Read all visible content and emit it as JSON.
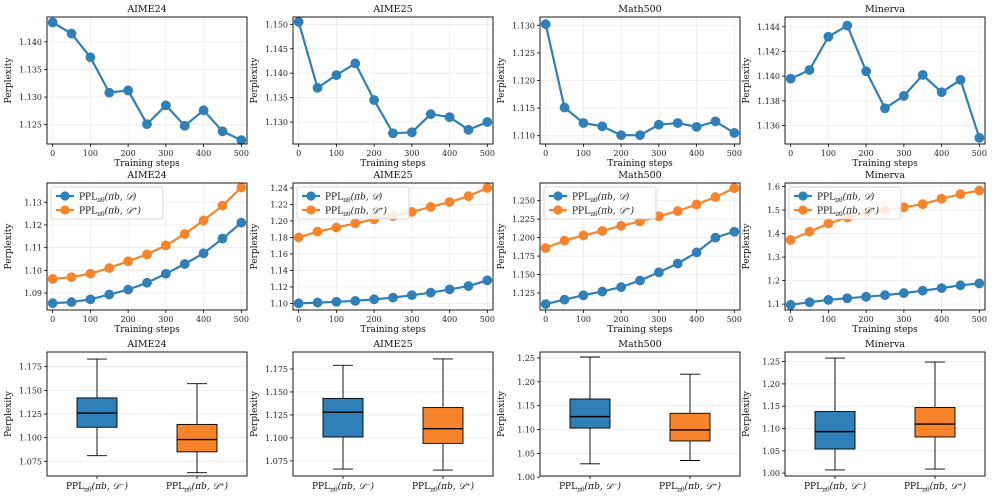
{
  "colors": {
    "blue": "#2f7fb8",
    "orange": "#f7842a",
    "grid": "#ececec",
    "axis": "#000000"
  },
  "chart_data": [
    {
      "type": "line",
      "title": "AIME24",
      "xlabel": "Training steps",
      "ylabel": "Perplexity",
      "xticks": [
        "0",
        "100",
        "200",
        "300",
        "400",
        "500"
      ],
      "xlim": [
        -15,
        515
      ],
      "yticks": [
        "1.125",
        "1.130",
        "1.135",
        "1.140"
      ],
      "ylim": [
        1.1215,
        1.1445
      ],
      "x": [
        0,
        50,
        100,
        150,
        200,
        250,
        300,
        350,
        400,
        450,
        500
      ],
      "series": [
        {
          "name": "",
          "color": "#2f7fb8",
          "values": [
            1.1435,
            1.1415,
            1.1372,
            1.1308,
            1.1312,
            1.1251,
            1.1285,
            1.1248,
            1.1276,
            1.1238,
            1.1222
          ]
        }
      ]
    },
    {
      "type": "line",
      "title": "AIME25",
      "xlabel": "Training steps",
      "ylabel": "Perplexity",
      "xticks": [
        "0",
        "100",
        "200",
        "300",
        "400",
        "500"
      ],
      "xlim": [
        -15,
        515
      ],
      "yticks": [
        "1.130",
        "1.135",
        "1.140",
        "1.145",
        "1.150"
      ],
      "ylim": [
        1.1255,
        1.1515
      ],
      "x": [
        0,
        50,
        100,
        150,
        200,
        250,
        300,
        350,
        400,
        450,
        500
      ],
      "series": [
        {
          "name": "",
          "color": "#2f7fb8",
          "values": [
            1.1505,
            1.137,
            1.1396,
            1.142,
            1.1345,
            1.1277,
            1.1279,
            1.1316,
            1.131,
            1.1284,
            1.13
          ]
        }
      ]
    },
    {
      "type": "line",
      "title": "Math500",
      "xlabel": "Training steps",
      "ylabel": "Perplexity",
      "xticks": [
        "0",
        "100",
        "200",
        "300",
        "400",
        "500"
      ],
      "xlim": [
        -15,
        515
      ],
      "yticks": [
        "1.110",
        "1.115",
        "1.120",
        "1.125",
        "1.130"
      ],
      "ylim": [
        1.1085,
        1.1315
      ],
      "x": [
        0,
        50,
        100,
        150,
        200,
        250,
        300,
        350,
        400,
        450,
        500
      ],
      "series": [
        {
          "name": "",
          "color": "#2f7fb8",
          "values": [
            1.1302,
            1.1151,
            1.1123,
            1.1117,
            1.1101,
            1.1101,
            1.112,
            1.1123,
            1.1116,
            1.1126,
            1.1105
          ]
        }
      ]
    },
    {
      "type": "line",
      "title": "Minerva",
      "xlabel": "Training steps",
      "ylabel": "Perplexity",
      "xticks": [
        "0",
        "100",
        "200",
        "300",
        "400",
        "500"
      ],
      "xlim": [
        -15,
        515
      ],
      "yticks": [
        "1.136",
        "1.138",
        "1.140",
        "1.142",
        "1.144"
      ],
      "ylim": [
        1.1345,
        1.1448
      ],
      "x": [
        0,
        50,
        100,
        150,
        200,
        250,
        300,
        350,
        400,
        450,
        500
      ],
      "series": [
        {
          "name": "",
          "color": "#2f7fb8",
          "values": [
            1.1398,
            1.1405,
            1.1432,
            1.1441,
            1.1404,
            1.1374,
            1.1384,
            1.1401,
            1.1387,
            1.1397,
            1.135
          ]
        }
      ]
    },
    {
      "type": "line",
      "title": "AIME24",
      "xlabel": "Training steps",
      "ylabel": "Perplexity",
      "xticks": [
        "0",
        "100",
        "200",
        "300",
        "400",
        "500"
      ],
      "xlim": [
        -15,
        515
      ],
      "yticks": [
        "1.09",
        "1.10",
        "1.11",
        "1.12",
        "1.13"
      ],
      "ylim": [
        1.0825,
        1.1385
      ],
      "legend": "top-left",
      "x": [
        0,
        50,
        100,
        150,
        200,
        250,
        300,
        350,
        400,
        450,
        500
      ],
      "series": [
        {
          "name": "PPL",
          "sub": "πθ",
          "args": "(πb, 𝒟)",
          "color": "#2f7fb8",
          "values": [
            1.0855,
            1.086,
            1.0872,
            1.0893,
            1.0915,
            1.0945,
            1.0985,
            1.1028,
            1.1075,
            1.114,
            1.121
          ]
        },
        {
          "name": "PPL",
          "sub": "πθ",
          "args": "(πb, 𝒟⁺)",
          "color": "#f7842a",
          "values": [
            1.0962,
            1.097,
            1.0985,
            1.101,
            1.104,
            1.107,
            1.111,
            1.116,
            1.122,
            1.1285,
            1.1365
          ]
        }
      ]
    },
    {
      "type": "line",
      "title": "AIME25",
      "xlabel": "Training steps",
      "ylabel": "Perplexity",
      "xticks": [
        "0",
        "100",
        "200",
        "300",
        "400",
        "500"
      ],
      "xlim": [
        -15,
        515
      ],
      "yticks": [
        "1.10",
        "1.12",
        "1.14",
        "1.16",
        "1.18",
        "1.20",
        "1.22",
        "1.24"
      ],
      "ylim": [
        1.092,
        1.246
      ],
      "legend": "top-left",
      "x": [
        0,
        50,
        100,
        150,
        200,
        250,
        300,
        350,
        400,
        450,
        500
      ],
      "series": [
        {
          "name": "PPL",
          "sub": "πθ",
          "args": "(πb, 𝒟)",
          "color": "#2f7fb8",
          "values": [
            1.1,
            1.101,
            1.102,
            1.103,
            1.105,
            1.107,
            1.11,
            1.113,
            1.117,
            1.121,
            1.128
          ]
        },
        {
          "name": "PPL",
          "sub": "πθ",
          "args": "(πb, 𝒟⁺)",
          "color": "#f7842a",
          "values": [
            1.18,
            1.187,
            1.192,
            1.197,
            1.202,
            1.206,
            1.211,
            1.217,
            1.223,
            1.23,
            1.24
          ]
        }
      ]
    },
    {
      "type": "line",
      "title": "Math500",
      "xlabel": "Training steps",
      "ylabel": "Perplexity",
      "xticks": [
        "0",
        "100",
        "200",
        "300",
        "400",
        "500"
      ],
      "xlim": [
        -15,
        515
      ],
      "yticks": [
        "1.125",
        "1.150",
        "1.175",
        "1.200",
        "1.225",
        "1.250"
      ],
      "ylim": [
        1.102,
        1.274
      ],
      "legend": "top-left",
      "x": [
        0,
        50,
        100,
        150,
        200,
        250,
        300,
        350,
        400,
        450,
        500
      ],
      "series": [
        {
          "name": "PPL",
          "sub": "πθ",
          "args": "(πb, 𝒟)",
          "color": "#2f7fb8",
          "values": [
            1.11,
            1.116,
            1.122,
            1.127,
            1.133,
            1.142,
            1.153,
            1.165,
            1.18,
            1.2,
            1.208
          ]
        },
        {
          "name": "PPL",
          "sub": "πθ",
          "args": "(πb, 𝒟⁺)",
          "color": "#f7842a",
          "values": [
            1.186,
            1.196,
            1.203,
            1.209,
            1.216,
            1.222,
            1.229,
            1.236,
            1.245,
            1.255,
            1.267
          ]
        }
      ]
    },
    {
      "type": "line",
      "title": "Minerva",
      "xlabel": "Training steps",
      "ylabel": "Perplexity",
      "xticks": [
        "0",
        "100",
        "200",
        "300",
        "400",
        "500"
      ],
      "xlim": [
        -15,
        515
      ],
      "yticks": [
        "1.1",
        "1.2",
        "1.3",
        "1.4",
        "1.5",
        "1.6"
      ],
      "ylim": [
        1.075,
        1.615
      ],
      "legend": "top-left",
      "x": [
        0,
        50,
        100,
        150,
        200,
        250,
        300,
        350,
        400,
        450,
        500
      ],
      "series": [
        {
          "name": "PPL",
          "sub": "πθ",
          "args": "(πb, 𝒟)",
          "color": "#2f7fb8",
          "values": [
            1.097,
            1.108,
            1.118,
            1.125,
            1.131,
            1.138,
            1.147,
            1.157,
            1.168,
            1.18,
            1.188
          ]
        },
        {
          "name": "PPL",
          "sub": "πθ",
          "args": "(πb, 𝒟⁺)",
          "color": "#f7842a",
          "values": [
            1.373,
            1.408,
            1.443,
            1.468,
            1.488,
            1.5,
            1.512,
            1.525,
            1.548,
            1.568,
            1.583
          ]
        }
      ]
    },
    {
      "type": "box",
      "title": "AIME24",
      "ylabel": "Perplexity",
      "yticks": [
        "1.075",
        "1.100",
        "1.125",
        "1.150",
        "1.175"
      ],
      "ylim": [
        1.0595,
        1.1905
      ],
      "boxes": [
        {
          "label": "PPL",
          "sub": "πθ",
          "args": "(πb, 𝒟⁻)",
          "color": "#2f7fb8",
          "whislo": 1.081,
          "q1": 1.111,
          "median": 1.126,
          "q3": 1.142,
          "whishi": 1.183
        },
        {
          "label": "PPL",
          "sub": "πθ",
          "args": "(πb, 𝒟⁺)",
          "color": "#f7842a",
          "whislo": 1.063,
          "q1": 1.085,
          "median": 1.098,
          "q3": 1.114,
          "whishi": 1.157
        }
      ]
    },
    {
      "type": "box",
      "title": "AIME25",
      "ylabel": "Perplexity",
      "yticks": [
        "1.075",
        "1.100",
        "1.125",
        "1.150",
        "1.175"
      ],
      "ylim": [
        1.0585,
        1.1935
      ],
      "boxes": [
        {
          "label": "PPL",
          "sub": "πθ",
          "args": "(πb, 𝒟⁻)",
          "color": "#2f7fb8",
          "whislo": 1.066,
          "q1": 1.101,
          "median": 1.128,
          "q3": 1.143,
          "whishi": 1.179
        },
        {
          "label": "PPL",
          "sub": "πθ",
          "args": "(πb, 𝒟⁺)",
          "color": "#f7842a",
          "whislo": 1.065,
          "q1": 1.094,
          "median": 1.11,
          "q3": 1.133,
          "whishi": 1.186
        }
      ]
    },
    {
      "type": "box",
      "title": "Math500",
      "ylabel": "Perplexity",
      "yticks": [
        "1.00",
        "1.05",
        "1.10",
        "1.15",
        "1.20",
        "1.25"
      ],
      "ylim": [
        1.0025,
        1.2625
      ],
      "boxes": [
        {
          "label": "PPL",
          "sub": "πθ",
          "args": "(πb, 𝒟⁻)",
          "color": "#2f7fb8",
          "whislo": 1.028,
          "q1": 1.103,
          "median": 1.127,
          "q3": 1.164,
          "whishi": 1.252
        },
        {
          "label": "PPL",
          "sub": "πθ",
          "args": "(πb, 𝒟⁺)",
          "color": "#f7842a",
          "whislo": 1.035,
          "q1": 1.076,
          "median": 1.099,
          "q3": 1.134,
          "whishi": 1.216
        }
      ]
    },
    {
      "type": "box",
      "title": "Minerva",
      "ylabel": "Perplexity",
      "yticks": [
        "1.00",
        "1.05",
        "1.10",
        "1.15",
        "1.20",
        "1.25"
      ],
      "ylim": [
        0.9935,
        1.2715
      ],
      "boxes": [
        {
          "label": "PPL",
          "sub": "πθ",
          "args": "(πb, 𝒟⁻)",
          "color": "#2f7fb8",
          "whislo": 1.007,
          "q1": 1.054,
          "median": 1.093,
          "q3": 1.138,
          "whishi": 1.258
        },
        {
          "label": "PPL",
          "sub": "πθ",
          "args": "(πb, 𝒟⁺)",
          "color": "#f7842a",
          "whislo": 1.009,
          "q1": 1.081,
          "median": 1.11,
          "q3": 1.147,
          "whishi": 1.249
        }
      ]
    }
  ]
}
